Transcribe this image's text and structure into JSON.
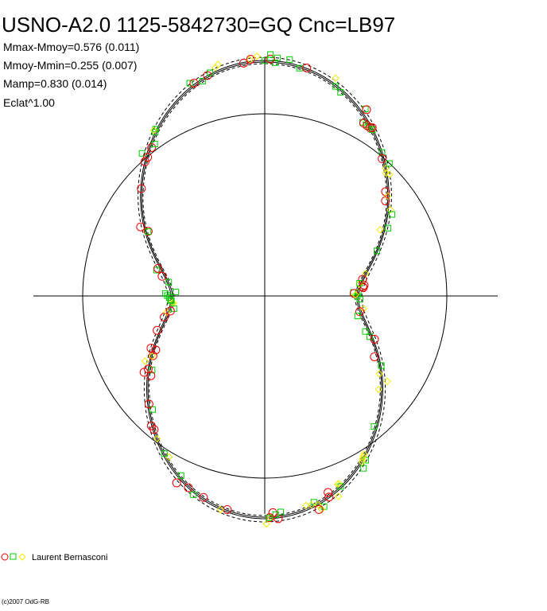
{
  "header": {
    "title": "USNO-A2.0 1125-5842730=GQ Cnc=LB97",
    "stats": [
      "Mmax-Mmoy=0.576 (0.011)",
      "Mmoy-Mmin=0.255 (0.007)",
      "Mamp=0.830 (0.014)",
      "Eclat^1.00"
    ]
  },
  "legend": {
    "observer": "Laurent Bernasconi"
  },
  "footer": {
    "copyright": "(c)2007 OdG-RB"
  }
}
